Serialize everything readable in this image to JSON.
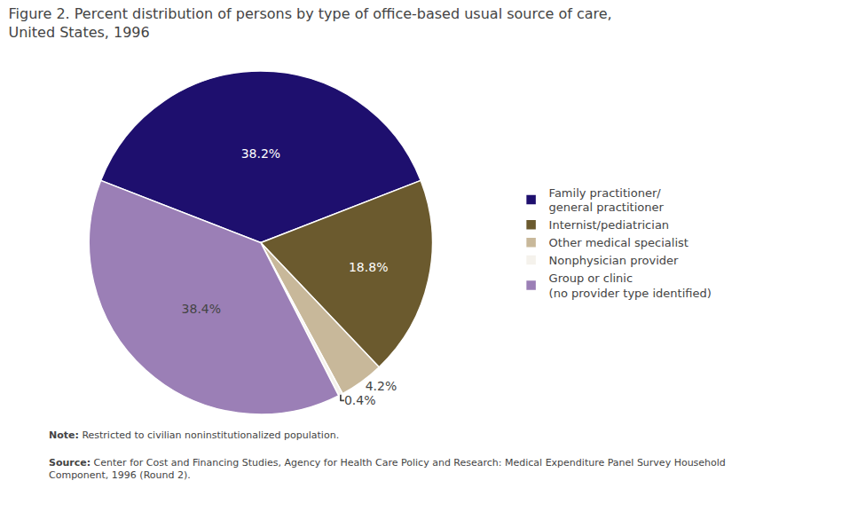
{
  "chart_data": {
    "type": "pie",
    "title": "Figure 2. Percent distribution of persons by type of office-based usual source of care,\nUnited States, 1996",
    "categories": [
      "Family practitioner/\ngeneral practitioner",
      "Internist/pediatrician",
      "Other medical specialist",
      "Nonphysician provider",
      "Group or clinic\n(no provider type identified)"
    ],
    "values": [
      38.2,
      18.8,
      4.2,
      0.4,
      38.4
    ],
    "value_labels": [
      "38.2%",
      "18.8%",
      "4.2%",
      "0.4%",
      "38.4%"
    ],
    "colors": [
      "#1e0f6e",
      "#6b5a2e",
      "#c8b89a",
      "#f5f2ec",
      "#9b7fb6"
    ],
    "data_labels": true,
    "legend": "right",
    "annotations": [
      {
        "bold": "Note:",
        "text": " Restricted to civilian noninstitutionalized population."
      },
      {
        "bold": "Source:",
        "text": " Center for Cost and Financing Studies, Agency for Health Care Policy and Research: Medical Expenditure Panel Survey Household Component, 1996 (Round 2)."
      }
    ]
  }
}
